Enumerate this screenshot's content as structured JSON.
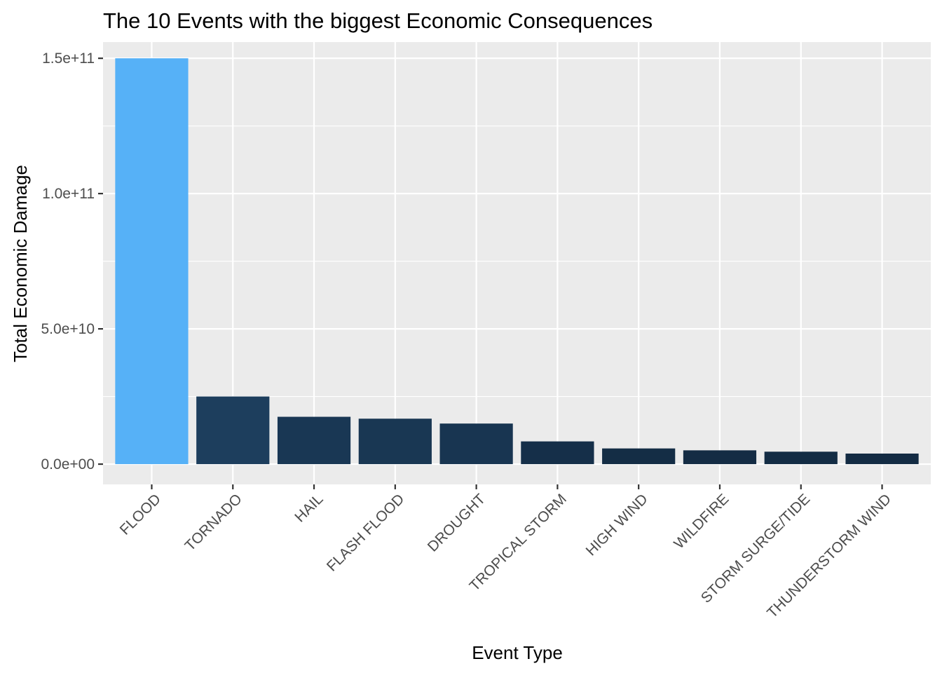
{
  "chart_data": {
    "type": "bar",
    "title": "The 10 Events with the biggest Economic Consequences",
    "xlabel": "Event Type",
    "ylabel": "Total Economic Damage",
    "categories": [
      "FLOOD",
      "TORNADO",
      "HAIL",
      "FLASH FLOOD",
      "DROUGHT",
      "TROPICAL STORM",
      "HIGH WIND",
      "WILDFIRE",
      "STORM SURGE/TIDE",
      "THUNDERSTORM WIND"
    ],
    "values": [
      150000000000,
      25000000000,
      17500000000,
      16800000000,
      15000000000,
      8400000000,
      5800000000,
      5100000000,
      4600000000,
      3900000000
    ],
    "ylim": [
      -7500000000,
      156000000000
    ],
    "yticks": [
      0,
      50000000000,
      100000000000,
      150000000000
    ],
    "yticklabels": [
      "0.0e+00",
      "5.0e+10",
      "1.0e+11",
      "1.5e+11"
    ],
    "grid": true,
    "legend": "none",
    "colors": {
      "panel": "#ebebeb",
      "gridline": "#ffffff",
      "tick": "#333333",
      "bar_low": "#132b43",
      "bar_high": "#56b1f7"
    }
  }
}
